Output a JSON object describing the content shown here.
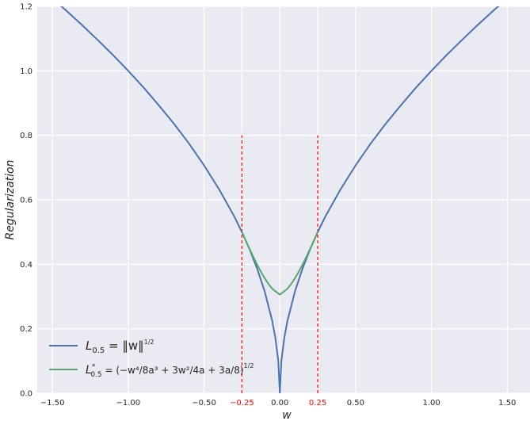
{
  "chart_data": {
    "type": "line",
    "xlabel": "w",
    "ylabel": "Regularization",
    "xlim": [
      -1.6,
      1.65
    ],
    "ylim": [
      0,
      1.2
    ],
    "grid": true,
    "legend_position": "bottom-left",
    "x_ticks": [
      "−1.50",
      "−1.00",
      "−0.50",
      "−0.25",
      "0.00",
      "0.25",
      "0.50",
      "1.00",
      "1.50"
    ],
    "x_tick_values": [
      -1.5,
      -1.0,
      -0.5,
      -0.25,
      0.0,
      0.25,
      0.5,
      1.0,
      1.5
    ],
    "x_tick_colors": [
      "#262626",
      "#262626",
      "#262626",
      "#ff0000",
      "#262626",
      "#ff0000",
      "#262626",
      "#262626",
      "#262626"
    ],
    "y_ticks": [
      "0.0",
      "0.2",
      "0.4",
      "0.6",
      "0.8",
      "1.0",
      "1.2"
    ],
    "y_tick_values": [
      0.0,
      0.2,
      0.4,
      0.6,
      0.8,
      1.0,
      1.2
    ],
    "series": [
      {
        "name": "L_0.5 = ||w||^(1/2)",
        "color": "#4c72b0",
        "x": [
          -1.6,
          -1.5,
          -1.4,
          -1.3,
          -1.2,
          -1.1,
          -1.0,
          -0.9,
          -0.8,
          -0.7,
          -0.6,
          -0.5,
          -0.4,
          -0.3,
          -0.25,
          -0.2,
          -0.15,
          -0.1,
          -0.05,
          -0.03,
          -0.01,
          0.0,
          0.01,
          0.03,
          0.05,
          0.1,
          0.15,
          0.2,
          0.25,
          0.3,
          0.4,
          0.5,
          0.6,
          0.7,
          0.8,
          0.9,
          1.0,
          1.1,
          1.2,
          1.3,
          1.4,
          1.5,
          1.6
        ],
        "y": [
          1.265,
          1.225,
          1.183,
          1.14,
          1.095,
          1.049,
          1.0,
          0.949,
          0.894,
          0.837,
          0.775,
          0.707,
          0.632,
          0.548,
          0.5,
          0.447,
          0.387,
          0.316,
          0.224,
          0.173,
          0.1,
          0.0,
          0.1,
          0.173,
          0.224,
          0.316,
          0.387,
          0.447,
          0.5,
          0.548,
          0.632,
          0.707,
          0.775,
          0.837,
          0.894,
          0.949,
          1.0,
          1.049,
          1.095,
          1.14,
          1.183,
          1.225,
          1.265
        ]
      },
      {
        "name": "L*_0.5 = (-w^4/(8a^3) + 3w^2/(4a) + 3a/8)^(1/2)",
        "color": "#55a868",
        "x": [
          -0.25,
          -0.225,
          -0.2,
          -0.175,
          -0.15,
          -0.125,
          -0.1,
          -0.075,
          -0.05,
          -0.025,
          0.0,
          0.025,
          0.05,
          0.075,
          0.1,
          0.125,
          0.15,
          0.175,
          0.2,
          0.225,
          0.25
        ],
        "y": [
          0.5,
          0.474,
          0.448,
          0.423,
          0.399,
          0.377,
          0.357,
          0.339,
          0.324,
          0.315,
          0.306,
          0.315,
          0.324,
          0.339,
          0.357,
          0.377,
          0.399,
          0.423,
          0.448,
          0.474,
          0.5
        ]
      }
    ],
    "vlines": [
      {
        "x": -0.25,
        "ymin": 0,
        "ymax": 0.8,
        "color": "#ff0000",
        "style": "dashed"
      },
      {
        "x": 0.25,
        "ymin": 0,
        "ymax": 0.8,
        "color": "#ff0000",
        "style": "dashed"
      }
    ]
  },
  "legend": {
    "l1_main": "L",
    "l1_sub": "0.5",
    "l1_rest": " = ‖w‖",
    "l1_exp": "1/2",
    "l2_main": "L",
    "l2_sup": "*",
    "l2_sub": "0.5",
    "l2_rest": " = (−w⁴/8a³ + 3w²/4a + 3a/8)",
    "l2_exp": "1/2"
  },
  "colors": {
    "plot_bg": "#eaeaf2",
    "grid": "#ffffff",
    "text": "#262626",
    "accent": "#ff0000"
  }
}
